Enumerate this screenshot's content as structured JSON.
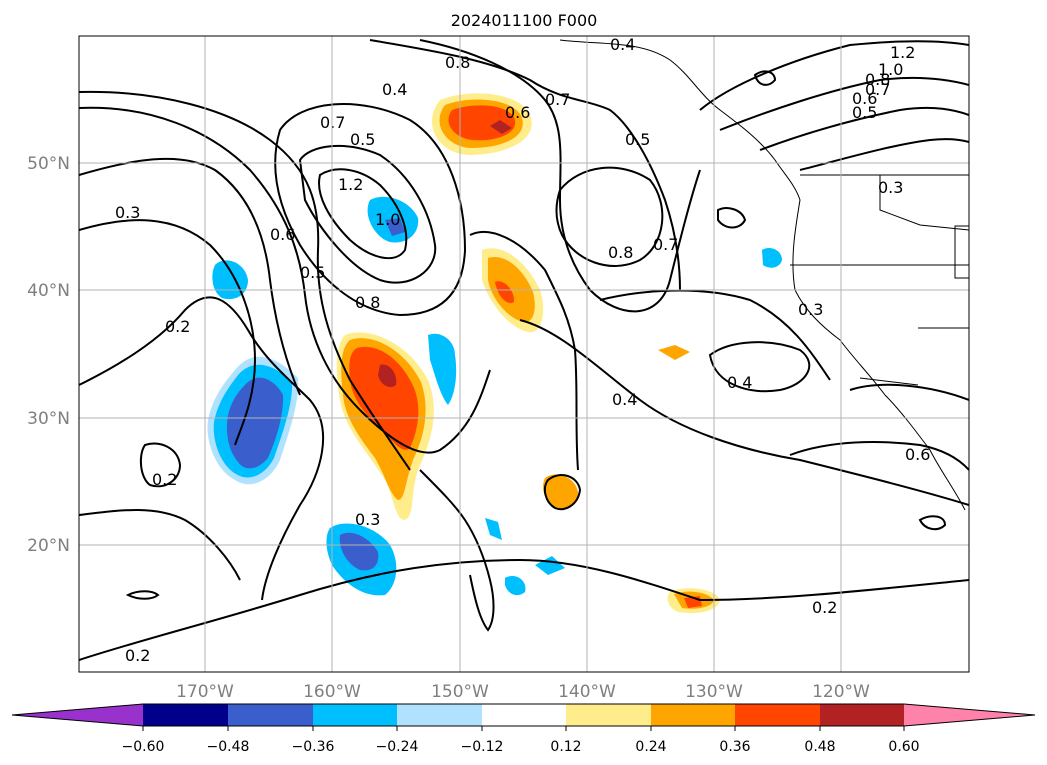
{
  "title": "2024011100 F000",
  "map": {
    "lat_labels": [
      "50°N",
      "40°N",
      "30°N",
      "20°N"
    ],
    "lon_labels": [
      "170°W",
      "160°W",
      "150°W",
      "140°W",
      "130°W",
      "120°W"
    ],
    "contour_labels": [
      "0.8",
      "0.4",
      "0.4",
      "0.6",
      "0.7",
      "0.7",
      "0.5",
      "0.5",
      "1.2",
      "1.0",
      "0.3",
      "0.6",
      "0.5",
      "0.8",
      "0.8",
      "0.7",
      "0.3",
      "0.2",
      "0.4",
      "0.4",
      "0.2",
      "0.3",
      "0.2",
      "0.2",
      "1.2",
      "1.0",
      "0.8",
      "0.7",
      "0.6",
      "0.5",
      "0.3",
      "0.6"
    ]
  },
  "colorbar": {
    "tick_labels": [
      "−0.60",
      "−0.48",
      "−0.36",
      "−0.24",
      "−0.12",
      "0.12",
      "0.24",
      "0.36",
      "0.48",
      "0.60"
    ],
    "colors": [
      "#9932cc",
      "#00008b",
      "#3a5fcd",
      "#00bfff",
      "#b0e2ff",
      "#ffffff",
      "#ffec8b",
      "#ffa500",
      "#ff4500",
      "#b22222",
      "#ff82ab"
    ]
  }
}
